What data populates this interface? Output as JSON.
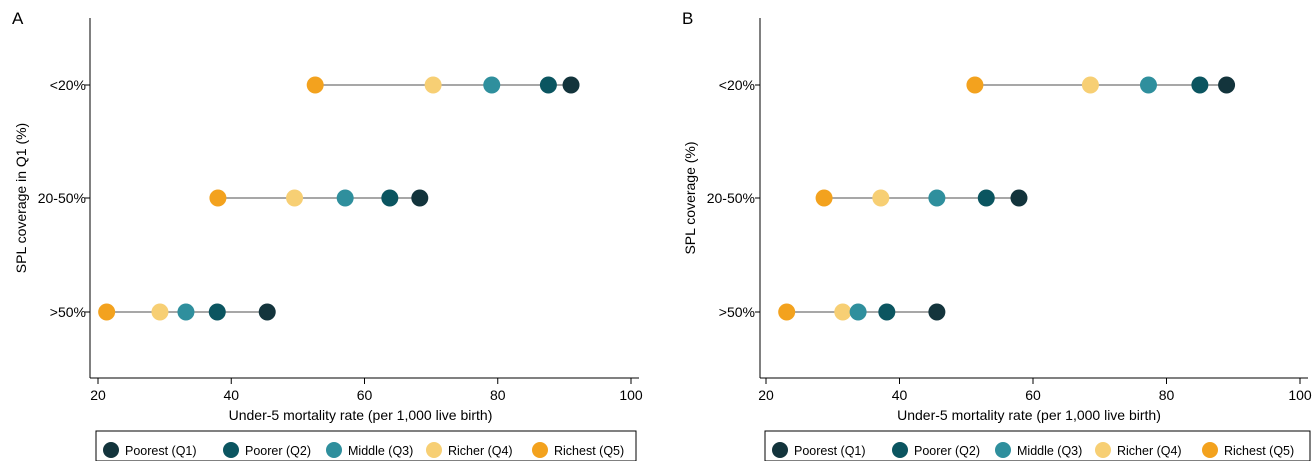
{
  "series_colors": {
    "Poorest (Q1)": "#13343c",
    "Poorer (Q2)": "#0b5560",
    "Middle (Q3)": "#2f8f9d",
    "Richer (Q4)": "#f7cf74",
    "Richest (Q5)": "#f3a21e"
  },
  "chart_data": [
    {
      "type": "scatter",
      "panel_label": "A",
      "xlabel": "Under-5 mortality rate (per 1,000 live birth)",
      "ylabel": "SPL coverage in Q1 (%)",
      "xlim": [
        20,
        100
      ],
      "xticks": [
        "20",
        "40",
        "60",
        "80",
        "100"
      ],
      "categories": [
        "<20%",
        "20-50%",
        ">50%"
      ],
      "grid": false,
      "legend_position": "bottom",
      "series": [
        {
          "name": "Poorest (Q1)",
          "values": [
            91.0,
            68.3,
            45.4
          ]
        },
        {
          "name": "Poorer (Q2)",
          "values": [
            87.6,
            63.8,
            37.9
          ]
        },
        {
          "name": "Middle (Q3)",
          "values": [
            79.1,
            57.1,
            33.2
          ]
        },
        {
          "name": "Richer (Q4)",
          "values": [
            70.3,
            49.5,
            29.3
          ]
        },
        {
          "name": "Richest (Q5)",
          "values": [
            52.6,
            38.0,
            21.3
          ]
        }
      ]
    },
    {
      "type": "scatter",
      "panel_label": "B",
      "xlabel": "Under-5 mortality rate (per 1,000 live birth)",
      "ylabel": "SPL coverage (%)",
      "xlim": [
        20,
        100
      ],
      "xticks": [
        "20",
        "40",
        "60",
        "80",
        "100"
      ],
      "categories": [
        "<20%",
        "20-50%",
        ">50%"
      ],
      "grid": false,
      "legend_position": "bottom",
      "series": [
        {
          "name": "Poorest (Q1)",
          "values": [
            89.0,
            57.9,
            45.6
          ]
        },
        {
          "name": "Poorer (Q2)",
          "values": [
            85.0,
            53.0,
            38.1
          ]
        },
        {
          "name": "Middle (Q3)",
          "values": [
            77.3,
            45.6,
            33.8
          ]
        },
        {
          "name": "Richer (Q4)",
          "values": [
            68.6,
            37.2,
            31.5
          ]
        },
        {
          "name": "Richest (Q5)",
          "values": [
            51.3,
            28.7,
            23.1
          ]
        }
      ]
    }
  ]
}
